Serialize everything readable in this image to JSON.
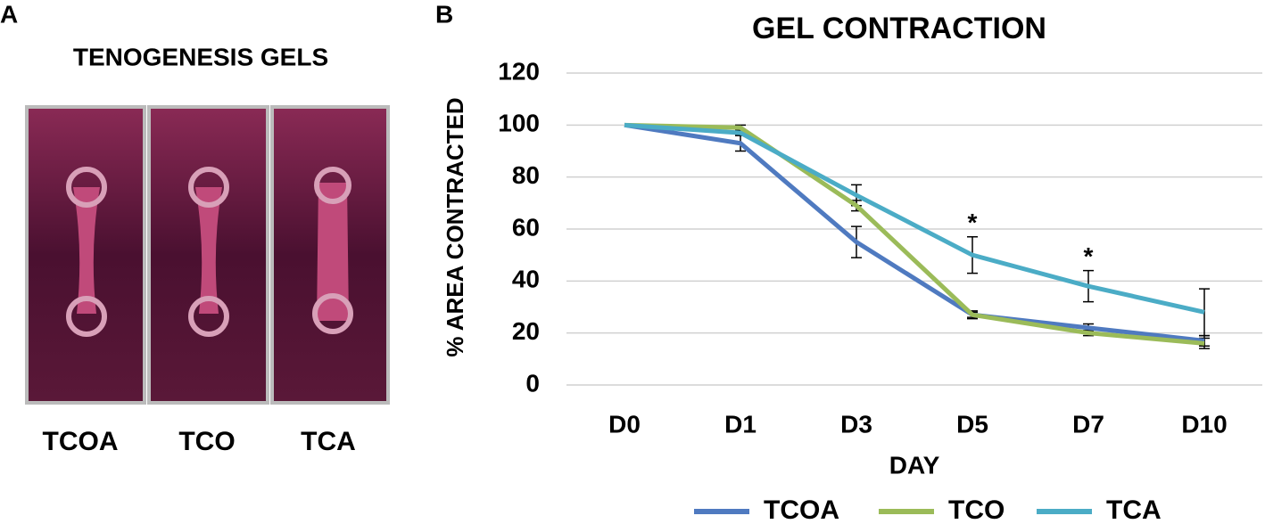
{
  "panel_a": {
    "letter": "A",
    "title": "TENOGENESIS GELS",
    "labels": [
      "TCOA",
      "TCO",
      "TCA"
    ]
  },
  "chart_data": {
    "type": "line",
    "letter": "B",
    "title": "GEL CONTRACTION",
    "x_label": "DAY",
    "y_label": "% AREA CONTRACTED",
    "categories": [
      "D0",
      "D1",
      "D3",
      "D5",
      "D7",
      "D10"
    ],
    "series": [
      {
        "name": "TCOA",
        "color": "#4f7ac0",
        "values": [
          100,
          93,
          55,
          27,
          22,
          17
        ],
        "errors": [
          0,
          3,
          6,
          1.5,
          1.5,
          2
        ]
      },
      {
        "name": "TCO",
        "color": "#9bbb59",
        "values": [
          100,
          99,
          69,
          27,
          20,
          16
        ],
        "errors": [
          0,
          1,
          2,
          1,
          1,
          2
        ]
      },
      {
        "name": "TCA",
        "color": "#4bacc6",
        "values": [
          100,
          97,
          73,
          50,
          38,
          28
        ],
        "errors": [
          0,
          1,
          4,
          7,
          6,
          9
        ]
      }
    ],
    "annotations": [
      {
        "text": "*",
        "at": "D5"
      },
      {
        "text": "*",
        "at": "D7"
      }
    ],
    "ylim": [
      0,
      120
    ],
    "yticks": [
      0,
      20,
      40,
      60,
      80,
      100,
      120
    ],
    "grid": true,
    "legend": "bottom"
  }
}
